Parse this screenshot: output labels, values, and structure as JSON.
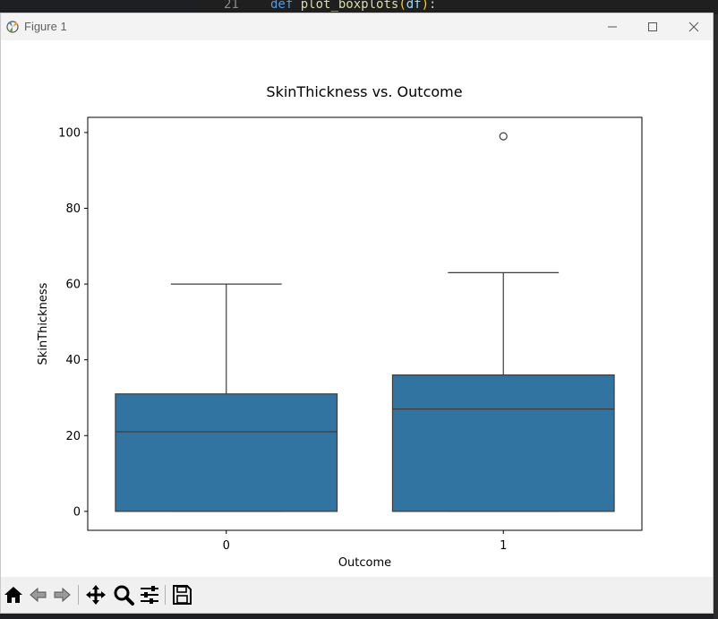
{
  "editor": {
    "line_number": "21",
    "keyword": "def",
    "function_name": "plot_boxplots",
    "param": "df"
  },
  "window": {
    "title": "Figure 1"
  },
  "colors": {
    "box_fill": "#3274a1",
    "box_edge": "#3d3d3d"
  },
  "chart_data": {
    "type": "box",
    "title": "SkinThickness vs. Outcome",
    "xlabel": "Outcome",
    "ylabel": "SkinThickness",
    "categories": [
      "0",
      "1"
    ],
    "ylim": [
      -5,
      104
    ],
    "yticks": [
      0,
      20,
      40,
      60,
      80,
      100
    ],
    "boxes": [
      {
        "category": "0",
        "whisker_low": 0,
        "q1": 0,
        "median": 21,
        "q3": 31,
        "whisker_high": 60,
        "outliers": []
      },
      {
        "category": "1",
        "whisker_low": 0,
        "q1": 0,
        "median": 27,
        "q3": 36,
        "whisker_high": 63,
        "outliers": [
          99
        ]
      }
    ],
    "grid": false
  },
  "toolbar": {
    "buttons": [
      "home-icon",
      "back-arrow-icon",
      "forward-arrow-icon",
      "pan-icon",
      "zoom-icon",
      "configure-subplots-icon",
      "save-icon"
    ]
  }
}
